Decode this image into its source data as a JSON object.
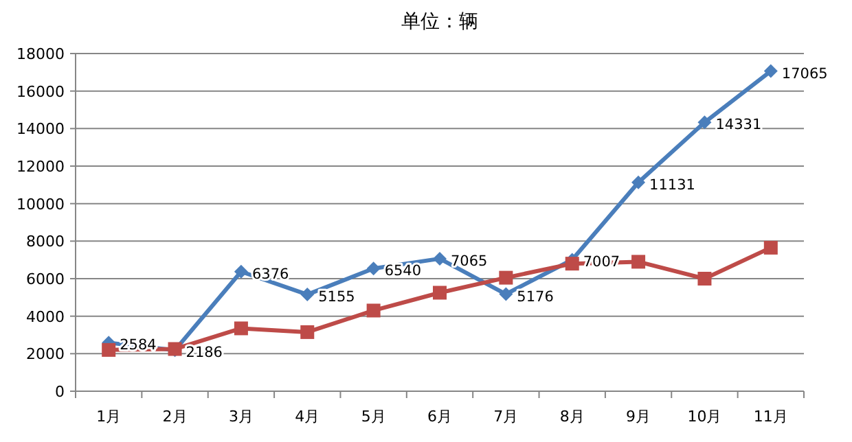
{
  "chart_data": {
    "type": "line",
    "title": "单位：辆",
    "categories": [
      "1月",
      "2月",
      "3月",
      "4月",
      "5月",
      "6月",
      "7月",
      "8月",
      "9月",
      "10月",
      "11月"
    ],
    "series": [
      {
        "color": "#4a7ebb",
        "marker": "diamond",
        "values": [
          2584,
          2186,
          6376,
          5155,
          6540,
          7065,
          5176,
          7007,
          11131,
          14331,
          17065
        ],
        "value_labels": [
          "2584",
          "2186",
          "6376",
          "5155",
          "6540",
          "7065",
          "5176",
          "7007",
          "11131",
          "14331",
          "17065"
        ]
      },
      {
        "color": "#be4b48",
        "marker": "square",
        "values": [
          2200,
          2250,
          3350,
          3150,
          4300,
          5250,
          6050,
          6800,
          6900,
          6000,
          7650
        ]
      }
    ],
    "ylim": [
      0,
      18000
    ],
    "yticks": [
      0,
      2000,
      4000,
      6000,
      8000,
      10000,
      12000,
      14000,
      16000,
      18000
    ],
    "grid": "y"
  }
}
